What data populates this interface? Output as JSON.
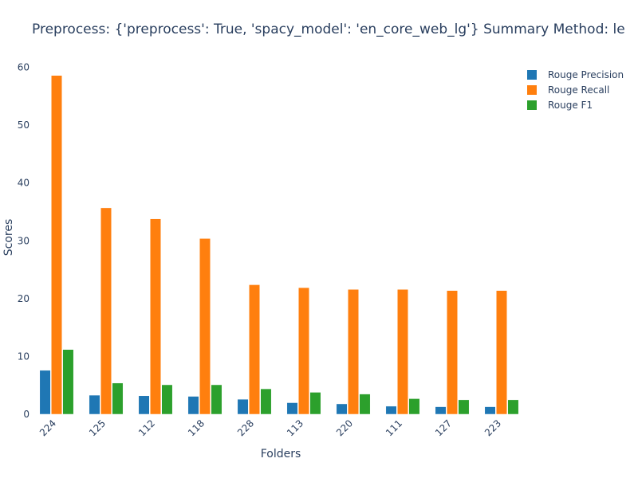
{
  "chart_data": {
    "type": "bar",
    "title": "Preprocess: {'preprocess': True, 'spacy_model': 'en_core_web_lg'} Summary Method: le",
    "xlabel": "Folders",
    "ylabel": "Scores",
    "ylim": [
      0,
      62
    ],
    "yticks": [
      0,
      10,
      20,
      30,
      40,
      50,
      60
    ],
    "categories": [
      "224",
      "125",
      "112",
      "118",
      "228",
      "113",
      "220",
      "111",
      "127",
      "223"
    ],
    "series": [
      {
        "name": "Rouge Precision",
        "color": "#1f77b4",
        "values": [
          7.6,
          3.3,
          3.2,
          3.1,
          2.6,
          2.0,
          1.8,
          1.4,
          1.3,
          1.3
        ]
      },
      {
        "name": "Rouge Recall",
        "color": "#ff7f0e",
        "values": [
          58.6,
          35.7,
          33.8,
          30.4,
          22.4,
          21.9,
          21.6,
          21.6,
          21.4,
          21.4
        ]
      },
      {
        "name": "Rouge F1",
        "color": "#2ca02c",
        "values": [
          11.2,
          5.4,
          5.1,
          5.1,
          4.4,
          3.8,
          3.5,
          2.7,
          2.5,
          2.5
        ]
      }
    ],
    "legend_position": "top-right",
    "grid": false
  }
}
